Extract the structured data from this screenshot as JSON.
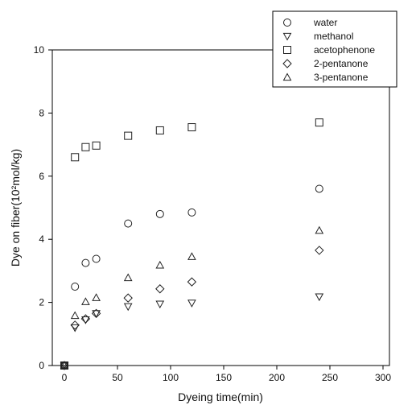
{
  "chart_data": {
    "type": "scatter",
    "xlabel": "Dyeing time(min)",
    "ylabel": "Dye on fiber(10²mol/kg)",
    "xlim": [
      0,
      300
    ],
    "ylim": [
      0,
      10
    ],
    "xticks": [
      "0",
      "50",
      "100",
      "150",
      "200",
      "250",
      "300"
    ],
    "yticks": [
      "0",
      "2",
      "4",
      "6",
      "8",
      "10"
    ],
    "grid": false,
    "legend_position": "top-right",
    "series": [
      {
        "name": "water",
        "marker": "circle",
        "x": [
          0,
          10,
          20,
          30,
          60,
          90,
          120,
          240
        ],
        "y": [
          0,
          2.5,
          3.25,
          3.38,
          4.5,
          4.8,
          4.85,
          5.6
        ]
      },
      {
        "name": "methanol",
        "marker": "triangle-down",
        "x": [
          0,
          10,
          20,
          30,
          60,
          90,
          120,
          240
        ],
        "y": [
          0,
          1.2,
          1.45,
          1.65,
          1.87,
          1.95,
          1.98,
          2.18
        ]
      },
      {
        "name": "acetophenone",
        "marker": "square",
        "x": [
          0,
          10,
          20,
          30,
          60,
          90,
          120,
          240
        ],
        "y": [
          0,
          6.6,
          6.92,
          6.97,
          7.28,
          7.45,
          7.55,
          7.7
        ]
      },
      {
        "name": "2-pentanone",
        "marker": "diamond",
        "x": [
          0,
          10,
          20,
          30,
          60,
          90,
          120,
          240
        ],
        "y": [
          0,
          1.28,
          1.48,
          1.65,
          2.14,
          2.43,
          2.65,
          3.65
        ]
      },
      {
        "name": "3-pentanone",
        "marker": "triangle-up",
        "x": [
          0,
          10,
          20,
          30,
          60,
          90,
          120,
          240
        ],
        "y": [
          0,
          1.58,
          2.02,
          2.15,
          2.78,
          3.18,
          3.45,
          4.28
        ]
      }
    ]
  }
}
